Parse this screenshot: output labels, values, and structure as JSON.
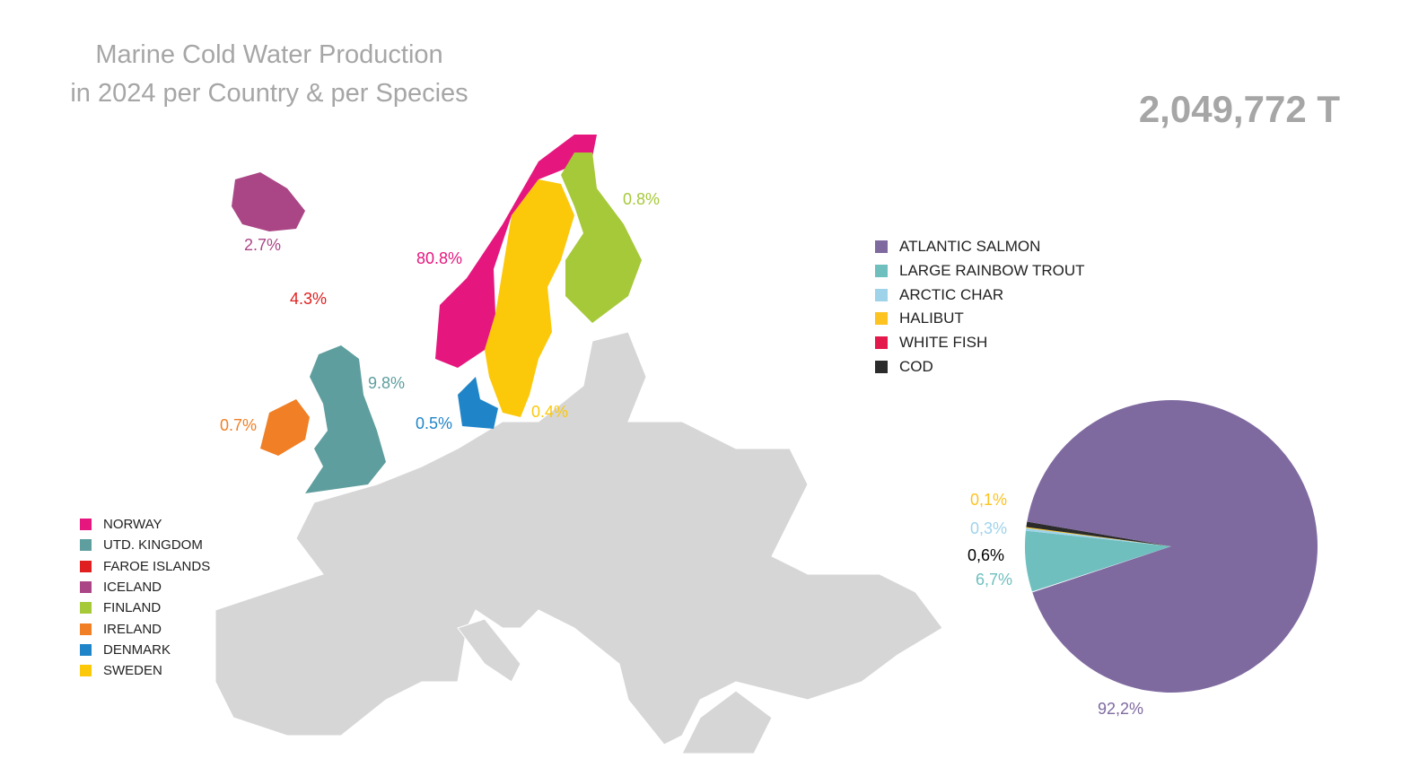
{
  "title_line1": "Marine Cold Water Production",
  "title_line2": "in 2024 per Country & per Species",
  "total": "2,049,772 T",
  "countries": [
    {
      "name": "NORWAY",
      "color": "#e5177e",
      "share": "80.8%"
    },
    {
      "name": "UTD. KINGDOM",
      "color": "#5f9e9e",
      "share": "9.8%"
    },
    {
      "name": "FAROE ISLANDS",
      "color": "#e02020",
      "share": "4.3%"
    },
    {
      "name": "ICELAND",
      "color": "#ab4686",
      "share": "2.7%"
    },
    {
      "name": "FINLAND",
      "color": "#a6c93a",
      "share": "0.8%"
    },
    {
      "name": "IRELAND",
      "color": "#f07f26",
      "share": "0.7%"
    },
    {
      "name": "DENMARK",
      "color": "#1f85c8",
      "share": "0.5%"
    },
    {
      "name": "SWEDEN",
      "color": "#fcc80a",
      "share": "0.4%"
    }
  ],
  "chart_data": {
    "type": "pie",
    "categories": [
      "ATLANTIC SALMON",
      "LARGE RAINBOW TROUT",
      "ARCTIC CHAR",
      "HALIBUT",
      "WHITE FISH",
      "COD"
    ],
    "values": [
      92.2,
      6.7,
      0.3,
      0.1,
      null,
      0.6
    ],
    "labels": [
      "92,2%",
      "6,7%",
      "0,3%",
      "0,1%",
      "",
      "0,6%"
    ],
    "colors": [
      "#7f6aa0",
      "#6fbfbf",
      "#9fd3ea",
      "#fcc321",
      "#e3194b",
      "#2b2b2b"
    ],
    "legend": "right-top"
  }
}
